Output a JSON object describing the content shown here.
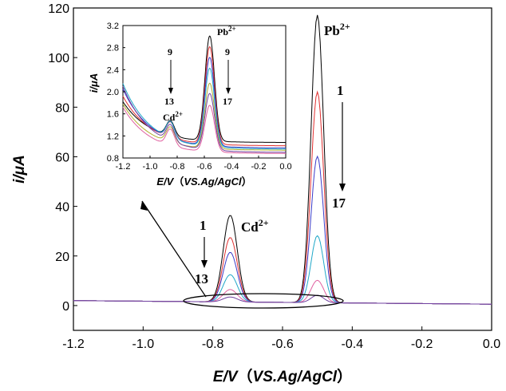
{
  "chart_data": [
    {
      "type": "line",
      "xlabel_main": "E/V",
      "xlabel_paren": "VS.Ag/AgCl",
      "ylabel": "i/μA",
      "xlim": [
        -1.2,
        0.0
      ],
      "ylim": [
        -10,
        120
      ],
      "x_ticks": [
        -1.2,
        -1.0,
        -0.8,
        -0.6,
        -0.4,
        -0.2,
        0.0
      ],
      "x_tick_labels": [
        "-1.2",
        "-1.0",
        "-0.8",
        "-0.6",
        "-0.4",
        "-0.2",
        "0.0"
      ],
      "y_ticks": [
        0,
        20,
        40,
        60,
        80,
        100,
        120
      ],
      "y_tick_labels": [
        "0",
        "20",
        "40",
        "60",
        "80",
        "100",
        "120"
      ],
      "grid": false,
      "annotations": [
        {
          "text": "Pb",
          "sup": "2+",
          "x": -0.49,
          "y": 116
        },
        {
          "text": "Cd",
          "sup": "2+",
          "x": -0.74,
          "y": 36
        },
        {
          "text": "1",
          "x": -0.46,
          "y": 87
        },
        {
          "text": "17",
          "x": -0.46,
          "y": 41
        },
        {
          "text": "1",
          "x": -0.81,
          "y": 32
        },
        {
          "text": "13",
          "x": -0.81,
          "y": 11
        }
      ],
      "series": [
        {
          "color": "#000000",
          "values": [
            {
              "pb": 116,
              "cd": 35,
              "base": 2.0
            }
          ]
        },
        {
          "color": "#e03030",
          "values": [
            {
              "pb": 85,
              "cd": 26,
              "base": 2.0
            }
          ]
        },
        {
          "color": "#3b3bc8",
          "values": [
            {
              "pb": 59,
              "cd": 20,
              "base": 2.0
            }
          ]
        },
        {
          "color": "#20a8c8",
          "values": [
            {
              "pb": 27,
              "cd": 11,
              "base": 2.0
            }
          ]
        },
        {
          "color": "#e060a0",
          "values": [
            {
              "pb": 9,
              "cd": 5,
              "base": 2.0
            }
          ]
        },
        {
          "color": "#7040a0",
          "values": [
            {
              "pb": 3,
              "cd": 2,
              "base": 2.0
            }
          ]
        }
      ],
      "peaks": {
        "pb_x": -0.5,
        "cd_x": -0.75
      }
    },
    {
      "type": "line",
      "role": "inset",
      "xlabel_main": "E/V",
      "xlabel_paren": "VS.Ag/AgCl",
      "ylabel": "i/μA",
      "xlim": [
        -1.2,
        0.0
      ],
      "ylim": [
        0.8,
        3.2
      ],
      "x_ticks": [
        -1.2,
        -1.0,
        -0.8,
        -0.6,
        -0.4,
        -0.2,
        0.0
      ],
      "x_tick_labels": [
        "-1.2",
        "-1.0",
        "-0.8",
        "-0.6",
        "-0.4",
        "-0.2",
        "0.0"
      ],
      "y_ticks": [
        0.8,
        1.2,
        1.6,
        2.0,
        2.4,
        2.8,
        3.2
      ],
      "y_tick_labels": [
        "0.8",
        "1.2",
        "1.6",
        "2.0",
        "2.4",
        "2.8",
        "3.2"
      ],
      "annotations": [
        {
          "text": "Pb",
          "sup": "2+",
          "x": -0.52,
          "y": 3.15
        },
        {
          "text": "Cd",
          "sup": "2+",
          "x": -0.92,
          "y": 1.45
        },
        {
          "text": "9",
          "x": -0.93,
          "y": 2.85
        },
        {
          "text": "13",
          "x": -0.93,
          "y": 1.85
        },
        {
          "text": "9",
          "x": -0.44,
          "y": 2.85
        },
        {
          "text": "17",
          "x": -0.44,
          "y": 1.85
        }
      ],
      "series": [
        {
          "color": "#000000",
          "values": [
            {
              "pb": 3.08,
              "cd": 1.35,
              "left": 1.82,
              "right": 1.08
            }
          ]
        },
        {
          "color": "#e03030",
          "values": [
            {
              "pb": 2.88,
              "cd": 1.3,
              "left": 1.92,
              "right": 1.02
            }
          ]
        },
        {
          "color": "#3b3bc8",
          "values": [
            {
              "pb": 2.68,
              "cd": 1.28,
              "left": 2.05,
              "right": 0.98
            }
          ]
        },
        {
          "color": "#20a8c8",
          "values": [
            {
              "pb": 2.48,
              "cd": 1.26,
              "left": 2.15,
              "right": 0.96
            }
          ]
        },
        {
          "color": "#b0b030",
          "values": [
            {
              "pb": 2.22,
              "cd": 1.22,
              "left": 1.78,
              "right": 0.94
            }
          ]
        },
        {
          "color": "#7040a0",
          "values": [
            {
              "pb": 2.02,
              "cd": 1.2,
              "left": 2.1,
              "right": 0.9
            }
          ]
        },
        {
          "color": "#e060a0",
          "values": [
            {
              "pb": 1.82,
              "cd": 1.18,
              "left": 1.72,
              "right": 0.88
            }
          ]
        }
      ],
      "peaks": {
        "pb_x": -0.56,
        "cd_x": -0.85
      }
    }
  ]
}
